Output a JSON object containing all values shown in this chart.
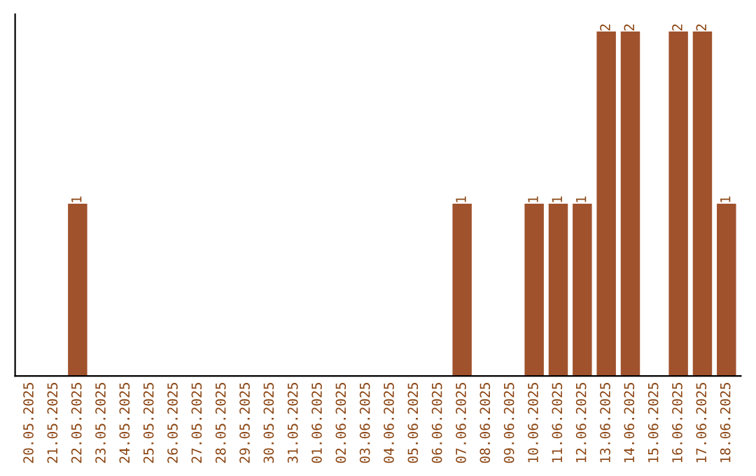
{
  "chart_data": {
    "type": "bar",
    "categories": [
      "20.05.2025",
      "21.05.2025",
      "22.05.2025",
      "23.05.2025",
      "24.05.2025",
      "25.05.2025",
      "26.05.2025",
      "27.05.2025",
      "28.05.2025",
      "29.05.2025",
      "30.05.2025",
      "31.05.2025",
      "01.06.2025",
      "02.06.2025",
      "03.06.2025",
      "04.06.2025",
      "05.06.2025",
      "06.06.2025",
      "07.06.2025",
      "08.06.2025",
      "09.06.2025",
      "10.06.2025",
      "11.06.2025",
      "12.06.2025",
      "13.06.2025",
      "14.06.2025",
      "15.06.2025",
      "16.06.2025",
      "17.06.2025",
      "18.06.2025"
    ],
    "values": [
      0,
      0,
      1,
      0,
      0,
      0,
      0,
      0,
      0,
      0,
      0,
      0,
      0,
      0,
      0,
      0,
      0,
      0,
      1,
      0,
      0,
      1,
      1,
      1,
      2,
      2,
      0,
      2,
      2,
      1
    ],
    "value_labels": [
      null,
      null,
      "1",
      null,
      null,
      null,
      null,
      null,
      null,
      null,
      null,
      null,
      null,
      null,
      null,
      null,
      null,
      null,
      "1",
      null,
      null,
      "1",
      "1",
      "1",
      "2",
      "2",
      null,
      "2",
      "2",
      "1"
    ],
    "color": "#a0522d",
    "grid": false,
    "legend": false
  }
}
